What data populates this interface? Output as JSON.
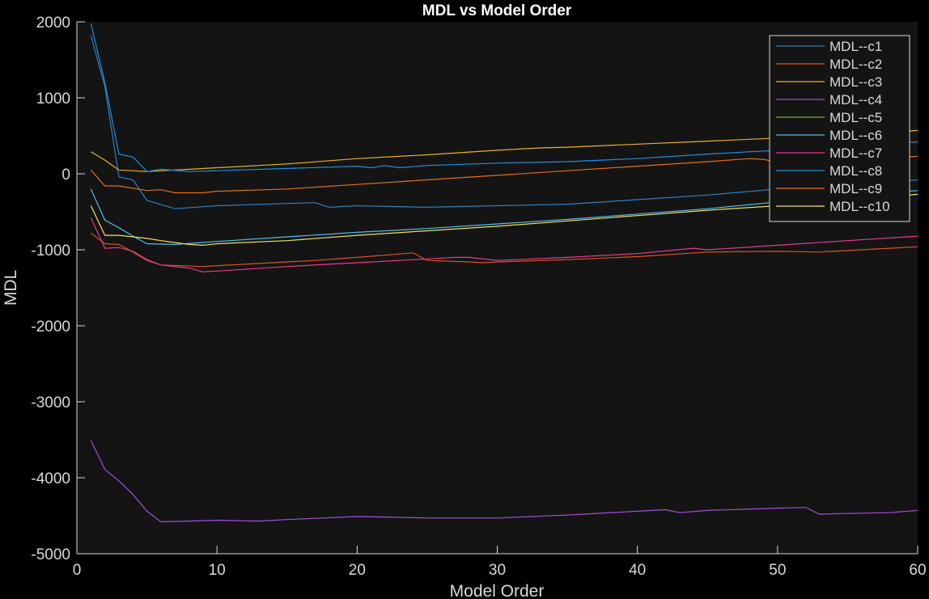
{
  "chart_data": {
    "type": "line",
    "title": "MDL vs Model Order",
    "xlabel": "Model Order",
    "ylabel": "MDL",
    "xlim": [
      0,
      60
    ],
    "ylim": [
      -5000,
      2000
    ],
    "xticks": [
      0,
      10,
      20,
      30,
      40,
      50,
      60
    ],
    "yticks": [
      -5000,
      -4000,
      -3000,
      -2000,
      -1000,
      0,
      1000,
      2000
    ],
    "grid": false,
    "legend_position": "top-right",
    "background": "#141414",
    "axis_color": "#d9d9d9",
    "series": [
      {
        "name": "MDL--c1",
        "color": "#2f7fc2",
        "points": [
          [
            1,
            1820
          ],
          [
            2,
            1150
          ],
          [
            3,
            -40
          ],
          [
            4,
            -80
          ],
          [
            5,
            -350
          ],
          [
            7,
            -460
          ],
          [
            10,
            -420
          ],
          [
            15,
            -390
          ],
          [
            17,
            -380
          ],
          [
            18,
            -440
          ],
          [
            20,
            -420
          ],
          [
            25,
            -440
          ],
          [
            30,
            -420
          ],
          [
            35,
            -400
          ],
          [
            40,
            -340
          ],
          [
            45,
            -280
          ],
          [
            50,
            -200
          ],
          [
            55,
            -160
          ],
          [
            60,
            -80
          ]
        ]
      },
      {
        "name": "MDL--c2",
        "color": "#d9541a",
        "points": [
          [
            1,
            -780
          ],
          [
            2,
            -920
          ],
          [
            3,
            -930
          ],
          [
            4,
            -1030
          ],
          [
            5,
            -1140
          ],
          [
            6,
            -1200
          ],
          [
            9,
            -1220
          ],
          [
            13,
            -1180
          ],
          [
            17,
            -1140
          ],
          [
            20,
            -1100
          ],
          [
            24,
            -1040
          ],
          [
            25,
            -1140
          ],
          [
            28,
            -1160
          ],
          [
            29,
            -1170
          ],
          [
            30,
            -1160
          ],
          [
            35,
            -1130
          ],
          [
            40,
            -1090
          ],
          [
            45,
            -1030
          ],
          [
            50,
            -1020
          ],
          [
            53,
            -1030
          ],
          [
            55,
            -1010
          ],
          [
            58,
            -980
          ],
          [
            60,
            -960
          ]
        ]
      },
      {
        "name": "MDL--c3",
        "color": "#edb120",
        "points": [
          [
            1,
            290
          ],
          [
            2,
            180
          ],
          [
            3,
            50
          ],
          [
            4,
            40
          ],
          [
            5,
            30
          ],
          [
            8,
            60
          ],
          [
            10,
            80
          ],
          [
            15,
            130
          ],
          [
            20,
            200
          ],
          [
            25,
            250
          ],
          [
            30,
            310
          ],
          [
            33,
            340
          ],
          [
            35,
            350
          ],
          [
            40,
            390
          ],
          [
            45,
            430
          ],
          [
            50,
            470
          ],
          [
            55,
            520
          ],
          [
            60,
            570
          ]
        ]
      },
      {
        "name": "MDL--c4",
        "color": "#a050d6",
        "points": [
          [
            1,
            -3510
          ],
          [
            2,
            -3890
          ],
          [
            3,
            -4040
          ],
          [
            4,
            -4220
          ],
          [
            5,
            -4440
          ],
          [
            6,
            -4580
          ],
          [
            8,
            -4570
          ],
          [
            10,
            -4560
          ],
          [
            13,
            -4570
          ],
          [
            15,
            -4550
          ],
          [
            20,
            -4510
          ],
          [
            25,
            -4530
          ],
          [
            30,
            -4530
          ],
          [
            35,
            -4490
          ],
          [
            40,
            -4440
          ],
          [
            42,
            -4420
          ],
          [
            43,
            -4460
          ],
          [
            45,
            -4430
          ],
          [
            50,
            -4400
          ],
          [
            52,
            -4390
          ],
          [
            53,
            -4480
          ],
          [
            55,
            -4470
          ],
          [
            58,
            -4460
          ],
          [
            60,
            -4430
          ]
        ]
      },
      {
        "name": "MDL--c5",
        "color": "#77ac30",
        "points": []
      },
      {
        "name": "MDL--c6",
        "color": "#4dbeee",
        "points": [
          [
            1,
            -200
          ],
          [
            2,
            -610
          ],
          [
            3,
            -710
          ],
          [
            4,
            -820
          ],
          [
            5,
            -920
          ],
          [
            7,
            -930
          ],
          [
            10,
            -890
          ],
          [
            15,
            -830
          ],
          [
            20,
            -770
          ],
          [
            25,
            -720
          ],
          [
            30,
            -660
          ],
          [
            35,
            -600
          ],
          [
            40,
            -530
          ],
          [
            45,
            -460
          ],
          [
            50,
            -370
          ],
          [
            55,
            -300
          ],
          [
            60,
            -220
          ]
        ]
      },
      {
        "name": "MDL--c7",
        "color": "#e33d8a",
        "points": [
          [
            1,
            -580
          ],
          [
            2,
            -980
          ],
          [
            3,
            -970
          ],
          [
            4,
            -1020
          ],
          [
            5,
            -1130
          ],
          [
            6,
            -1200
          ],
          [
            8,
            -1240
          ],
          [
            9,
            -1290
          ],
          [
            10,
            -1280
          ],
          [
            15,
            -1220
          ],
          [
            20,
            -1170
          ],
          [
            25,
            -1120
          ],
          [
            27,
            -1100
          ],
          [
            28,
            -1100
          ],
          [
            30,
            -1140
          ],
          [
            35,
            -1100
          ],
          [
            40,
            -1050
          ],
          [
            44,
            -980
          ],
          [
            45,
            -1000
          ],
          [
            50,
            -940
          ],
          [
            55,
            -880
          ],
          [
            60,
            -820
          ]
        ]
      },
      {
        "name": "MDL--c8",
        "color": "#1f8fe0",
        "points": [
          [
            1,
            1980
          ],
          [
            2,
            1200
          ],
          [
            3,
            260
          ],
          [
            4,
            220
          ],
          [
            5,
            30
          ],
          [
            6,
            60
          ],
          [
            8,
            30
          ],
          [
            10,
            40
          ],
          [
            15,
            70
          ],
          [
            20,
            100
          ],
          [
            21,
            80
          ],
          [
            22,
            110
          ],
          [
            23,
            80
          ],
          [
            25,
            110
          ],
          [
            30,
            140
          ],
          [
            35,
            160
          ],
          [
            40,
            200
          ],
          [
            45,
            260
          ],
          [
            50,
            310
          ],
          [
            55,
            360
          ],
          [
            60,
            420
          ]
        ]
      },
      {
        "name": "MDL--c9",
        "color": "#e3701a",
        "points": [
          [
            1,
            50
          ],
          [
            2,
            -160
          ],
          [
            3,
            -160
          ],
          [
            5,
            -220
          ],
          [
            6,
            -210
          ],
          [
            7,
            -250
          ],
          [
            9,
            -250
          ],
          [
            10,
            -230
          ],
          [
            15,
            -200
          ],
          [
            20,
            -140
          ],
          [
            25,
            -80
          ],
          [
            30,
            -20
          ],
          [
            35,
            40
          ],
          [
            40,
            100
          ],
          [
            45,
            160
          ],
          [
            48,
            200
          ],
          [
            49,
            190
          ],
          [
            50,
            150
          ],
          [
            55,
            190
          ],
          [
            60,
            230
          ]
        ]
      },
      {
        "name": "MDL--c10",
        "color": "#f2e05c",
        "points": [
          [
            1,
            -420
          ],
          [
            2,
            -810
          ],
          [
            3,
            -810
          ],
          [
            5,
            -850
          ],
          [
            6,
            -880
          ],
          [
            8,
            -930
          ],
          [
            9,
            -940
          ],
          [
            10,
            -920
          ],
          [
            15,
            -880
          ],
          [
            20,
            -810
          ],
          [
            25,
            -750
          ],
          [
            30,
            -690
          ],
          [
            35,
            -620
          ],
          [
            40,
            -550
          ],
          [
            45,
            -480
          ],
          [
            50,
            -420
          ],
          [
            55,
            -350
          ],
          [
            60,
            -270
          ]
        ]
      }
    ]
  }
}
